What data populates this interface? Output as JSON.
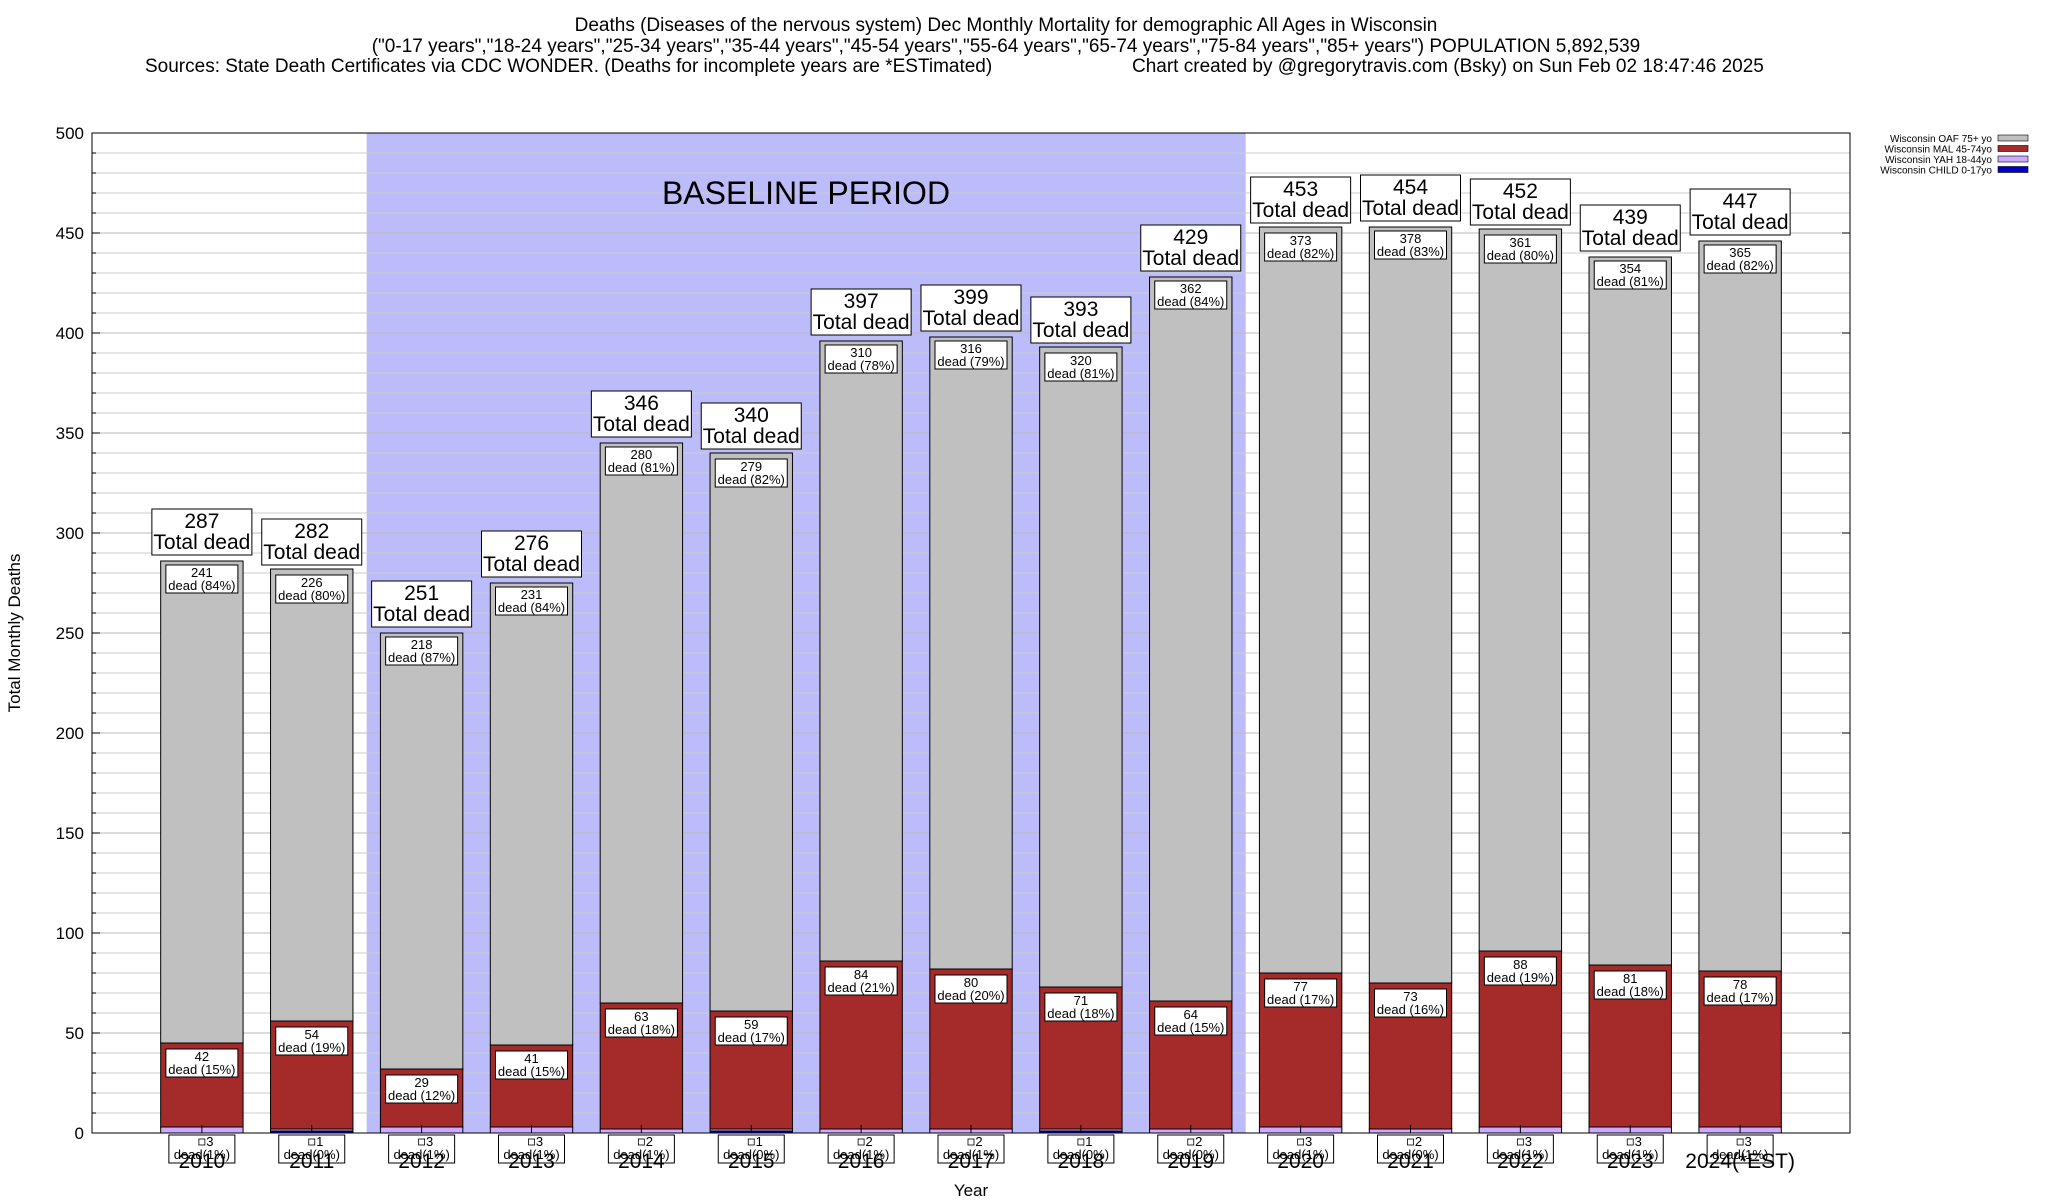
{
  "header": {
    "line1": "Deaths (Diseases of the nervous system) Dec Monthly Mortality for demographic All Ages in Wisconsin",
    "line2": "(\"0-17 years\",\"18-24 years\",\"25-34 years\",\"35-44 years\",\"45-54 years\",\"55-64 years\",\"65-74 years\",\"75-84 years\",\"85+ years\") POPULATION 5,892,539",
    "line3_left": "Sources: State Death Certificates via CDC WONDER. (Deaths for incomplete years are *ESTimated)",
    "line3_right": "Chart created by @gregorytravis.com (Bsky) on Sun Feb 02 18:47:46 2025"
  },
  "colors": {
    "baseline_band": "#bcbcfa",
    "oaf": "#c0c0c0",
    "mal": "#a52a2a",
    "yah": "#ccaaff",
    "child": "#0000cc",
    "grid": "#cccccc"
  },
  "chart_data": {
    "type": "bar",
    "stacked": true,
    "xlabel": "Year",
    "ylabel": "Total Monthly Deaths",
    "ylim": [
      0,
      500
    ],
    "yticks": [
      0,
      50,
      100,
      150,
      200,
      250,
      300,
      350,
      400,
      450,
      500
    ],
    "grid": true,
    "legend_position": "top-right",
    "baseline_label": "BASELINE PERIOD",
    "baseline_range": [
      "2012",
      "2019"
    ],
    "total_label": "Total dead",
    "dead_label": "dead",
    "categories": [
      "2010",
      "2011",
      "2012",
      "2013",
      "2014",
      "2015",
      "2016",
      "2017",
      "2018",
      "2019",
      "2020",
      "2021",
      "2022",
      "2023",
      "2024(*EST)"
    ],
    "totals": [
      287,
      282,
      251,
      276,
      346,
      340,
      397,
      399,
      393,
      429,
      453,
      454,
      452,
      439,
      447
    ],
    "series": [
      {
        "name": "Wisconsin CHILD 0-17yo",
        "values": [
          0,
          1,
          0,
          0,
          0,
          1,
          0,
          0,
          1,
          0,
          0,
          0,
          0,
          0,
          0
        ]
      },
      {
        "name": "Wisconsin YAH 18-44yo",
        "values": [
          3,
          1,
          3,
          3,
          2,
          1,
          2,
          2,
          1,
          2,
          3,
          2,
          3,
          3,
          3
        ],
        "pct_labels": [
          "1%",
          "0%",
          "1%",
          "1%",
          "1%",
          "0%",
          "1%",
          "1%",
          "0%",
          "0%",
          "1%",
          "0%",
          "1%",
          "1%",
          "1%"
        ]
      },
      {
        "name": "Wisconsin MAL 45-74yo",
        "values": [
          42,
          54,
          29,
          41,
          63,
          59,
          84,
          80,
          71,
          64,
          77,
          73,
          88,
          81,
          78
        ],
        "pct_labels": [
          "15%",
          "19%",
          "12%",
          "15%",
          "18%",
          "17%",
          "21%",
          "20%",
          "18%",
          "15%",
          "17%",
          "16%",
          "19%",
          "18%",
          "17%"
        ]
      },
      {
        "name": "Wisconsin OAF 75+ yo",
        "values": [
          241,
          226,
          218,
          231,
          280,
          279,
          310,
          316,
          320,
          362,
          373,
          378,
          361,
          354,
          365
        ],
        "pct_labels": [
          "84%",
          "80%",
          "87%",
          "84%",
          "81%",
          "82%",
          "78%",
          "79%",
          "81%",
          "84%",
          "82%",
          "83%",
          "80%",
          "81%",
          "82%"
        ]
      }
    ]
  }
}
